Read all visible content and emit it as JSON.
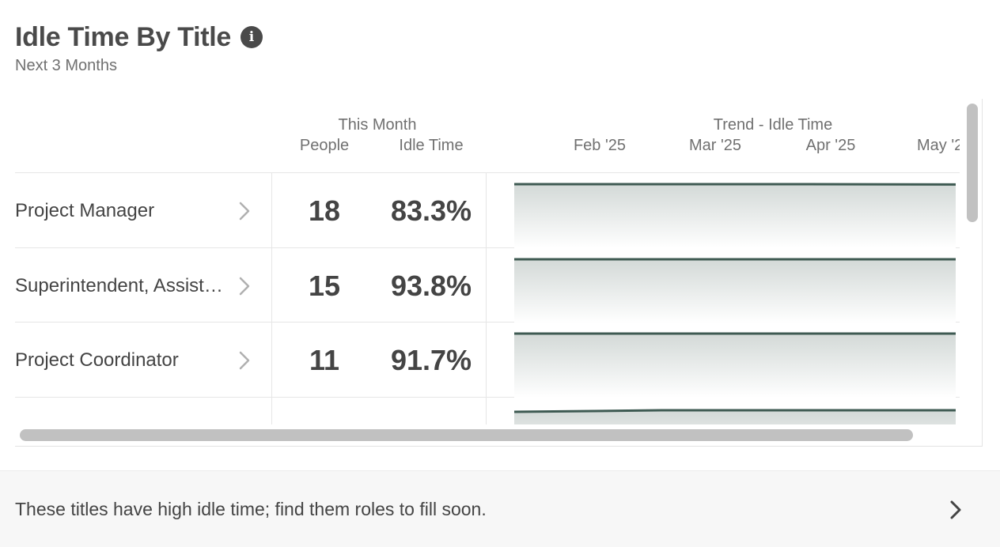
{
  "widget": {
    "title": "Idle Time By Title",
    "subtitle": "Next 3 Months",
    "info_icon": "info-icon"
  },
  "table": {
    "group_header": "This Month",
    "col_people": "People",
    "col_idle": "Idle Time",
    "trend_header": "Trend - Idle Time",
    "months": [
      "Feb '25",
      "Mar '25",
      "Apr '25",
      "May '2"
    ],
    "rows": [
      {
        "title": "Project Manager",
        "people": "18",
        "idle": "83.3%",
        "trend": [
          1.0,
          1.0,
          1.0,
          0.99
        ]
      },
      {
        "title": "Superintendent, Assist…",
        "people": "15",
        "idle": "93.8%",
        "trend": [
          1.0,
          1.0,
          1.0,
          1.0
        ]
      },
      {
        "title": "Project Coordinator",
        "people": "11",
        "idle": "91.7%",
        "trend": [
          1.0,
          1.0,
          1.0,
          1.0
        ]
      },
      {
        "title": "",
        "people": "",
        "idle": "",
        "trend": [
          0.9,
          0.95,
          0.95,
          0.95
        ]
      }
    ]
  },
  "footer": {
    "message": "These titles have high idle time; find them roles to fill soon."
  },
  "colors": {
    "trend_line": "#3e5a52",
    "trend_fill_top": "#d3d9d7",
    "text": "#444444",
    "muted": "#707070",
    "scrollbar": "#c1c1c1"
  }
}
